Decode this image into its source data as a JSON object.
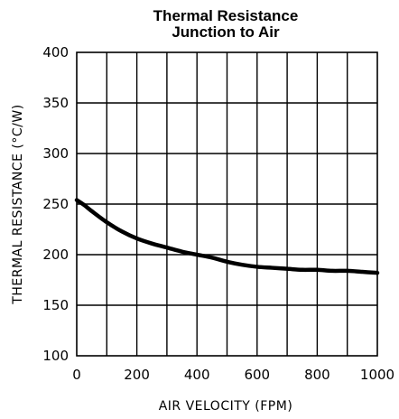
{
  "chart_data": {
    "type": "line",
    "title": "Thermal Resistance",
    "subtitle": "Junction to Air",
    "xlabel": "AIR VELOCITY (FPM)",
    "ylabel": "THERMAL RESISTANCE (°C/W)",
    "xlim": [
      0,
      1000
    ],
    "ylim": [
      100,
      400
    ],
    "x_ticks": [
      0,
      200,
      400,
      600,
      800,
      1000
    ],
    "y_ticks": [
      100,
      150,
      200,
      250,
      300,
      350,
      400
    ],
    "x_grid_step": 100,
    "y_grid_step": 50,
    "grid": true,
    "series": [
      {
        "x": [
          0,
          25,
          50,
          100,
          150,
          200,
          250,
          300,
          350,
          400,
          450,
          500,
          550,
          600,
          650,
          700,
          750,
          800,
          850,
          900,
          950,
          1000
        ],
        "y": [
          254,
          249,
          243,
          232,
          223,
          216,
          211,
          207,
          203,
          200,
          197,
          193,
          190,
          188,
          187,
          186,
          185,
          185,
          184,
          184,
          183,
          182
        ]
      }
    ]
  }
}
